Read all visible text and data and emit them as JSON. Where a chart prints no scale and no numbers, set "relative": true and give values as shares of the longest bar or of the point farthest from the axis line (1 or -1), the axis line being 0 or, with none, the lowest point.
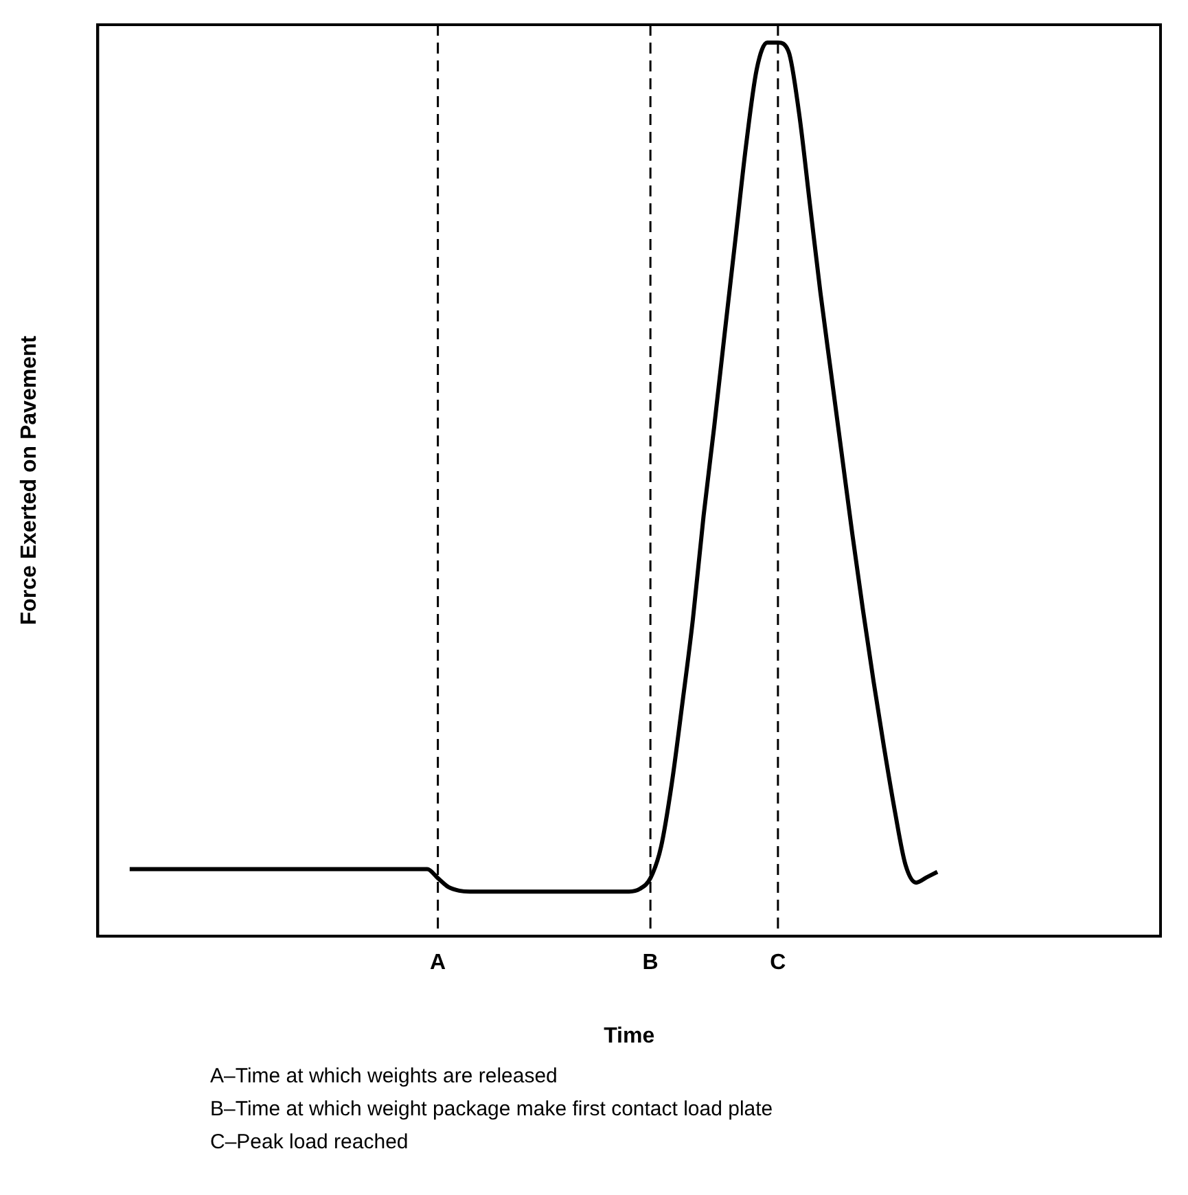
{
  "chart_data": {
    "type": "line",
    "xlabel": "Time",
    "ylabel": "Force Exerted on Pavement",
    "relative": true,
    "legend": false,
    "grid": false,
    "marker": "none",
    "line_style": "solid",
    "tick_labels": "x",
    "categories": [
      null,
      null,
      null,
      null,
      null,
      null,
      null,
      null,
      null,
      null,
      null,
      null,
      null,
      null,
      null,
      null,
      null,
      null,
      null,
      null,
      null,
      null,
      null,
      null,
      null,
      null,
      null,
      null,
      null,
      null,
      null,
      null,
      "A",
      null,
      null,
      null,
      null,
      null,
      null,
      null,
      null,
      null,
      null,
      null,
      null,
      null,
      null,
      null,
      null,
      null,
      null,
      null,
      "B",
      null,
      null,
      null,
      null,
      null,
      null,
      null,
      null,
      null,
      null,
      null,
      "C",
      null,
      null,
      null,
      null,
      null,
      null,
      null,
      null,
      null,
      null,
      null,
      null,
      null,
      null,
      null,
      null,
      null,
      null,
      null,
      null,
      null,
      null,
      null,
      null,
      null,
      null,
      null,
      null,
      null,
      null,
      null,
      null,
      null,
      null,
      null,
      null
    ],
    "ref_lines": [
      {
        "axis": "x",
        "value": "A",
        "line_style": "dashed",
        "color": "#000000"
      },
      {
        "axis": "x",
        "value": "B",
        "line_style": "dashed",
        "color": "#000000"
      },
      {
        "axis": "x",
        "value": "C",
        "line_style": "dashed",
        "color": "#000000"
      }
    ],
    "series": [
      {
        "color": "#000000",
        "values": [
          null,
          null,
          null,
          0.075,
          0.075,
          0.075,
          0.075,
          0.075,
          0.075,
          0.075,
          0.075,
          0.075,
          0.075,
          0.075,
          0.075,
          0.075,
          0.075,
          0.075,
          0.075,
          0.075,
          0.075,
          0.075,
          0.075,
          0.075,
          0.075,
          0.075,
          0.075,
          0.075,
          0.075,
          0.075,
          0.075,
          0.075,
          0.065,
          0.055,
          0.051,
          0.05,
          0.05,
          0.05,
          0.05,
          0.05,
          0.05,
          0.05,
          0.05,
          0.05,
          0.05,
          0.05,
          0.05,
          0.05,
          0.05,
          0.05,
          0.05,
          0.053,
          0.065,
          0.1,
          0.17,
          0.26,
          0.355,
          0.47,
          0.57,
          0.676,
          0.78,
          0.885,
          0.97,
          1.0,
          1.0,
          0.99,
          0.92,
          0.82,
          0.72,
          0.63,
          0.54,
          0.45,
          0.365,
          0.285,
          0.21,
          0.14,
          0.08,
          0.06,
          0.066,
          0.072,
          null,
          null,
          null,
          null,
          null,
          null,
          null,
          null,
          null,
          null,
          null,
          null,
          null,
          null,
          null,
          null,
          null,
          null,
          null,
          null,
          null
        ]
      }
    ],
    "annotations": [
      "A–Time at which weights are released",
      "B–Time at which weight package make first contact load plate",
      "C–Peak load reached"
    ]
  }
}
